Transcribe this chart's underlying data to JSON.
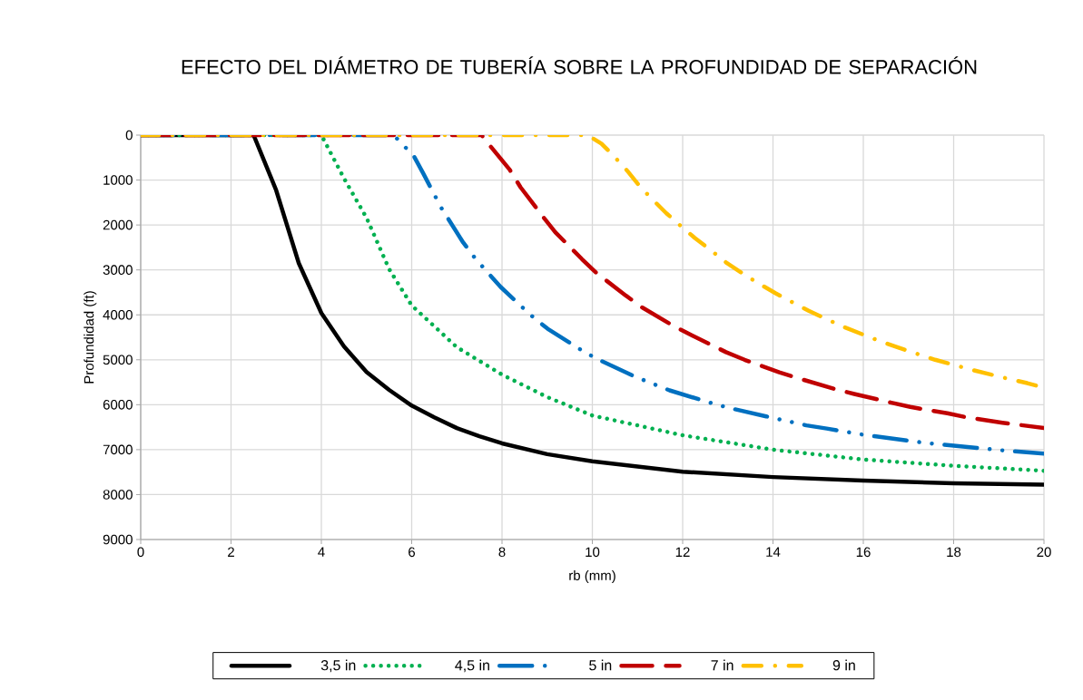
{
  "chart_data": {
    "type": "line",
    "title": "EFECTO DEL DIÁMETRO DE TUBERÍA SOBRE LA PROFUNDIDAD DE SEPARACIÓN",
    "xlabel": "rb (mm)",
    "ylabel": "Profundidad (ft)",
    "xlim": [
      0,
      20
    ],
    "xticks": [
      0,
      2,
      4,
      6,
      8,
      10,
      12,
      14,
      16,
      18,
      20
    ],
    "ylim": [
      9000,
      0
    ],
    "yticks": [
      0,
      1000,
      2000,
      3000,
      4000,
      5000,
      6000,
      7000,
      8000,
      9000
    ],
    "grid": true,
    "legend": "bottom",
    "marker": "none",
    "series": [
      {
        "name": "3,5 in",
        "color": "#000000",
        "line_style": "solid",
        "x": [
          0,
          2.5,
          3,
          3.5,
          4,
          4.5,
          5,
          5.5,
          6,
          6.5,
          7,
          7.5,
          8,
          9,
          10,
          12,
          14,
          16,
          18,
          20
        ],
        "values": [
          0,
          0,
          1230,
          2850,
          3960,
          4700,
          5270,
          5670,
          6020,
          6280,
          6520,
          6700,
          6860,
          7100,
          7260,
          7490,
          7610,
          7690,
          7750,
          7780
        ]
      },
      {
        "name": "4,5 in",
        "color": "#00b050",
        "line_style": "dotted",
        "x": [
          0,
          4.0,
          4.5,
          5,
          5.5,
          6,
          7,
          8,
          9,
          10,
          12,
          14,
          16,
          18,
          20
        ],
        "values": [
          0,
          0,
          960,
          1840,
          2980,
          3790,
          4720,
          5330,
          5830,
          6240,
          6680,
          7000,
          7220,
          7360,
          7470
        ]
      },
      {
        "name": "5 in",
        "color": "#0070c0",
        "line_style": "dashdotdot",
        "x": [
          0,
          5.6,
          6.05,
          6.26,
          6.65,
          7.14,
          7.42,
          7.97,
          8.64,
          9.01,
          9.7,
          10.1,
          10.93,
          11.71,
          12.59,
          13.02,
          13.85,
          14.74,
          15.19,
          16.01,
          16.92,
          17.37,
          18.21,
          19.13,
          20
        ],
        "values": [
          0,
          0,
          470,
          860,
          1610,
          2390,
          2760,
          3380,
          4010,
          4310,
          4750,
          4980,
          5370,
          5680,
          5950,
          6070,
          6260,
          6460,
          6530,
          6670,
          6790,
          6850,
          6930,
          7020,
          7090
        ]
      },
      {
        "name": "7 in",
        "color": "#c00000",
        "line_style": "dashed",
        "x": [
          0,
          7.55,
          7.64,
          8.17,
          8.41,
          8.91,
          9.18,
          9.77,
          10.08,
          10.74,
          11.11,
          11.82,
          12.21,
          12.96,
          13.37,
          14.14,
          14.56,
          15.36,
          15.8,
          16.6,
          17.04,
          17.86,
          18.28,
          19.08,
          19.54,
          20
        ],
        "values": [
          0,
          0,
          120,
          770,
          1160,
          1820,
          2160,
          2760,
          3060,
          3570,
          3840,
          4260,
          4460,
          4830,
          5000,
          5280,
          5410,
          5650,
          5760,
          5950,
          6050,
          6190,
          6280,
          6400,
          6460,
          6520
        ]
      },
      {
        "name": "9 in",
        "color": "#ffc000",
        "line_style": "dashdot",
        "x": [
          0,
          9.9,
          10.2,
          10.47,
          10.77,
          11.06,
          11.32,
          11.64,
          11.98,
          12.27,
          12.62,
          12.98,
          13.3,
          13.68,
          14.06,
          14.39,
          14.79,
          15.2,
          15.54,
          15.97,
          16.38,
          16.75,
          17.17,
          17.59,
          17.96,
          18.39,
          18.83,
          19.2,
          19.63,
          20
        ],
        "values": [
          0,
          0,
          190,
          460,
          790,
          1150,
          1420,
          1740,
          2040,
          2290,
          2560,
          2850,
          3060,
          3300,
          3520,
          3700,
          3910,
          4100,
          4260,
          4430,
          4590,
          4720,
          4860,
          5000,
          5100,
          5220,
          5330,
          5420,
          5520,
          5620
        ]
      }
    ]
  }
}
